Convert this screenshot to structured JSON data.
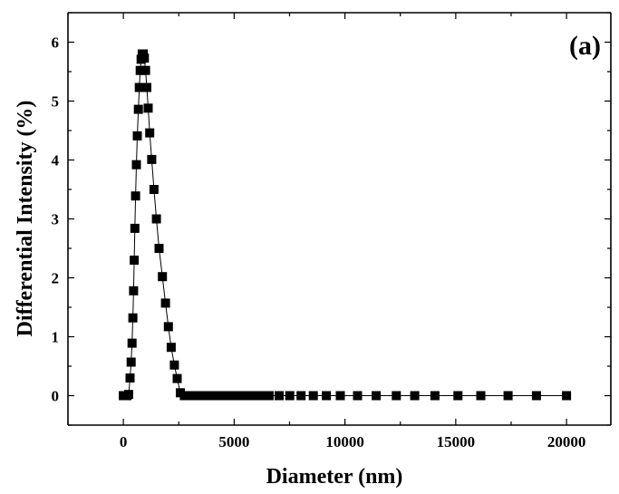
{
  "chart_data": {
    "type": "scatter",
    "panel_label": "(a)",
    "xlabel": "Diameter (nm)",
    "ylabel": "Differential Intensity (%)",
    "xlim": [
      -2500,
      22000
    ],
    "ylim": [
      -0.5,
      6.5
    ],
    "xticks": [
      0,
      5000,
      10000,
      15000,
      20000
    ],
    "yticks": [
      0,
      1,
      2,
      3,
      4,
      5,
      6
    ],
    "xtick_labels": [
      "0",
      "5000",
      "10000",
      "15000",
      "20000"
    ],
    "ytick_labels": [
      "0",
      "1",
      "2",
      "3",
      "4",
      "5",
      "6"
    ],
    "grid": false,
    "style": {
      "color": "#000000",
      "marker": "square",
      "connected": true
    },
    "series": [
      {
        "x": [
          0,
          80,
          160,
          240,
          300,
          350,
          390,
          430,
          460,
          490,
          520,
          550,
          590,
          630,
          680,
          720,
          760,
          800,
          850,
          900,
          950,
          1000,
          1060,
          1120,
          1190,
          1280,
          1380,
          1490,
          1610,
          1760,
          1900,
          2030,
          2160,
          2300,
          2430,
          2570,
          2750,
          2900,
          3050,
          3200,
          3360,
          3520,
          3690,
          3870,
          4060,
          4260,
          4470,
          4690,
          4920,
          5160,
          5420,
          5690,
          5970,
          6270,
          6580,
          7030,
          7510,
          8020,
          8570,
          9160,
          9790,
          10570,
          11410,
          12320,
          13150,
          14060,
          15100,
          16130,
          17360,
          18640,
          20000
        ],
        "y": [
          0,
          0,
          0,
          0.02,
          0.3,
          0.57,
          0.89,
          1.32,
          1.78,
          2.3,
          2.84,
          3.39,
          3.92,
          4.41,
          4.86,
          5.23,
          5.52,
          5.71,
          5.8,
          5.8,
          5.73,
          5.52,
          5.23,
          4.88,
          4.46,
          4.01,
          3.5,
          3.0,
          2.5,
          2.02,
          1.57,
          1.17,
          0.82,
          0.52,
          0.29,
          0.05,
          0,
          0,
          0,
          0,
          0,
          0,
          0,
          0,
          0,
          0,
          0,
          0,
          0,
          0,
          0,
          0,
          0,
          0,
          0,
          0,
          0,
          0,
          0,
          0,
          0,
          0,
          0,
          0,
          0,
          0,
          0,
          0,
          0,
          0,
          0
        ]
      }
    ]
  }
}
